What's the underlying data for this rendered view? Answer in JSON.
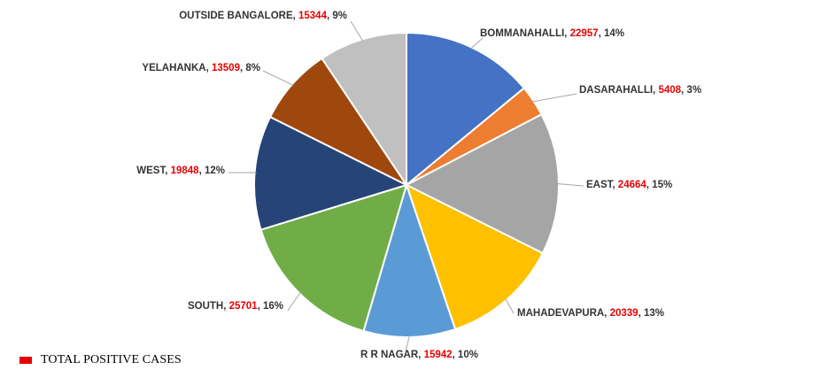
{
  "chart_data": {
    "type": "pie",
    "title": "",
    "series_name": "TOTAL POSITIVE CASES",
    "series_color": "#e60000",
    "label_text_color": "#333333",
    "slices": [
      {
        "label": "BOMMANAHALLI",
        "value": 22957,
        "percent": "14%",
        "color": "#4472c4"
      },
      {
        "label": "DASARAHALLI",
        "value": 5408,
        "percent": "3%",
        "color": "#ed7d31"
      },
      {
        "label": "EAST",
        "value": 24664,
        "percent": "15%",
        "color": "#a5a5a5"
      },
      {
        "label": "MAHADEVAPURA",
        "value": 20339,
        "percent": "13%",
        "color": "#ffc000"
      },
      {
        "label": "R R NAGAR",
        "value": 15942,
        "percent": "10%",
        "color": "#5b9bd5"
      },
      {
        "label": "SOUTH",
        "value": 25701,
        "percent": "16%",
        "color": "#70ad47"
      },
      {
        "label": "WEST",
        "value": 19848,
        "percent": "12%",
        "color": "#264478"
      },
      {
        "label": "YELAHANKA",
        "value": 13509,
        "percent": "8%",
        "color": "#9e480e"
      },
      {
        "label": "OUTSIDE BANGALORE",
        "value": 15344,
        "percent": "9%",
        "color": "#c0c0c0"
      }
    ]
  },
  "legend": {
    "label": "TOTAL POSITIVE CASES",
    "color": "#e60000"
  }
}
